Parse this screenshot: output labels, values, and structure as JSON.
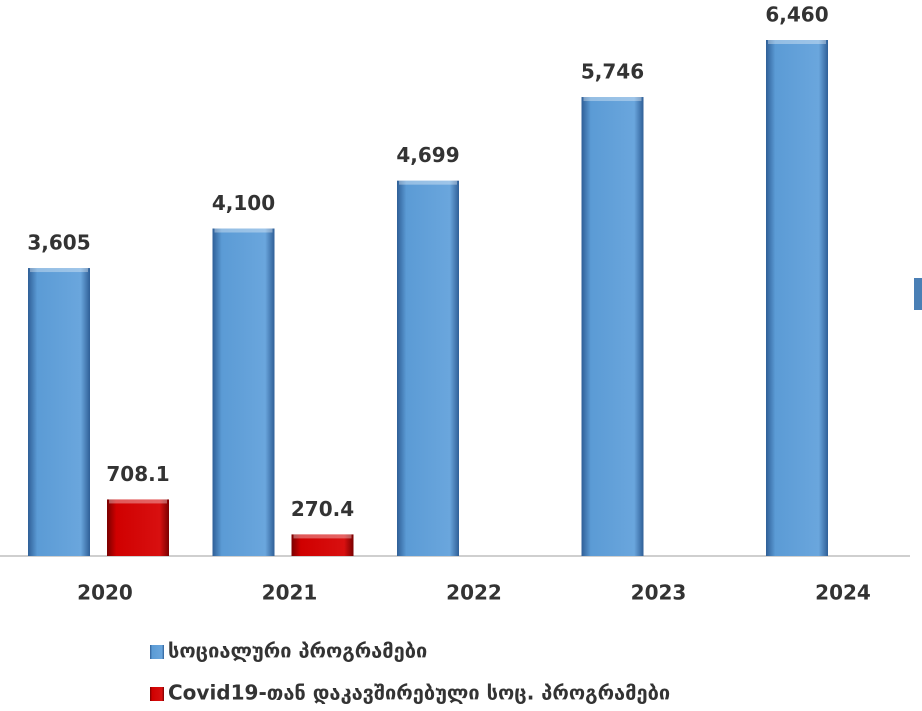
{
  "chart_data": {
    "type": "bar",
    "categories": [
      "2020",
      "2021",
      "2022",
      "2023",
      "2024"
    ],
    "series": [
      {
        "name": "სოციალური პროგრამები",
        "color": "#5b9bd5",
        "values": [
          3605,
          4100,
          4699,
          5746,
          6460
        ],
        "value_labels": [
          "3,605",
          "4,100",
          "4,699",
          "5,746",
          "6,460"
        ]
      },
      {
        "name": "Covid19-თან დაკავშირებული სოც. პროგრამები",
        "color": "#c00000",
        "values": [
          708.1,
          270.4,
          null,
          null,
          null
        ]
      }
    ]
  }
}
